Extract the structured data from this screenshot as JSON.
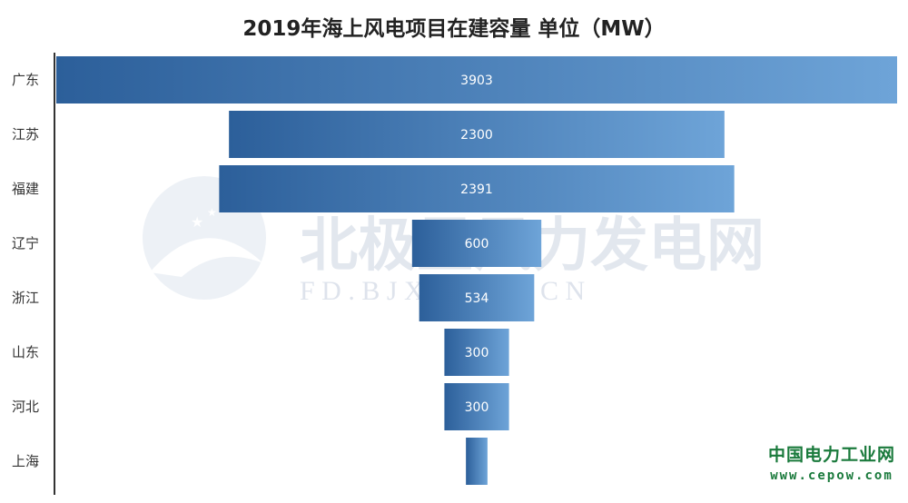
{
  "chart_data": {
    "type": "bar",
    "orientation": "horizontal-funnel",
    "title": "2019年海上风电项目在建容量 单位（MW）",
    "categories": [
      "广东",
      "江苏",
      "福建",
      "辽宁",
      "浙江",
      "山东",
      "河北",
      "上海"
    ],
    "values": [
      3903,
      2300,
      2391,
      600,
      534,
      300,
      300,
      100
    ],
    "value_labels": [
      "3903",
      "2300",
      "2391",
      "600",
      "534",
      "300",
      "300",
      ""
    ],
    "xlim": [
      0,
      3903
    ],
    "grid": false,
    "legend": "none",
    "colors": {
      "bar_dark": "#2c5f9a",
      "bar_light": "#6ea4d8",
      "axis": "#333333"
    }
  },
  "watermark": {
    "text": "北极星风力发电网",
    "url": "F D . B J X . C O M . C N"
  },
  "brand": {
    "name": "中国电力工业网",
    "url": "www.cepow.com"
  }
}
